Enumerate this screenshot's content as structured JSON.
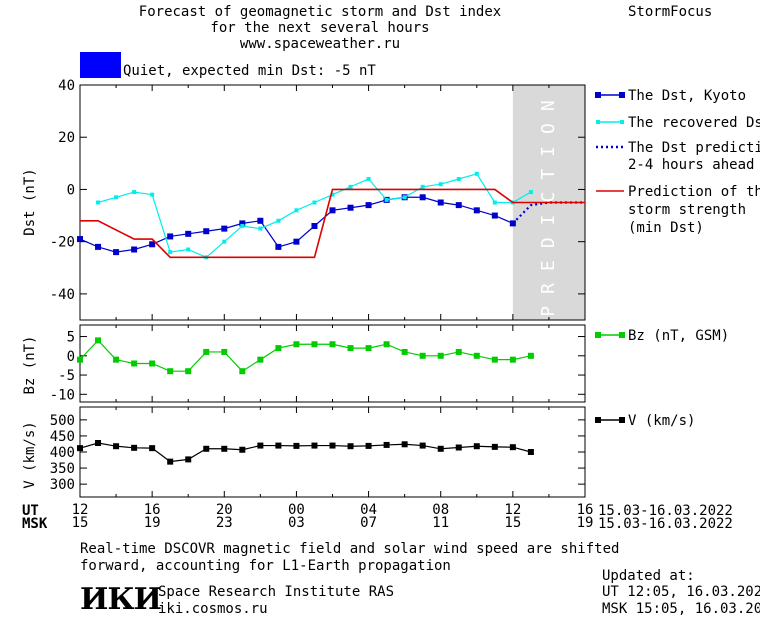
{
  "header": {
    "title_line1": "Forecast of geomagnetic storm and Dst index",
    "title_line2": "for the next several hours",
    "title_line3": "www.spaceweather.ru",
    "brand": "StormFocus"
  },
  "status": {
    "swatch_color": "#0000ff",
    "label": "Quiet, expected min Dst: -5 nT"
  },
  "chart_data": [
    {
      "type": "line",
      "panel": "dst",
      "ylabel": "Dst (nT)",
      "ylim": [
        -50,
        40
      ],
      "yticks": [
        40,
        20,
        0,
        -20,
        -40
      ],
      "x_hours_range": [
        0,
        28
      ],
      "prediction_region": {
        "label": "PREDICTION",
        "x_from_hours": 24,
        "x_to_hours": 28,
        "color": "#d9d9d9"
      },
      "series": [
        {
          "name": "The Dst, Kyoto",
          "color": "#0000cc",
          "style": "line-square",
          "x": [
            0,
            1,
            2,
            3,
            4,
            5,
            6,
            7,
            8,
            9,
            10,
            11,
            12,
            13,
            14,
            15,
            16,
            17,
            18,
            19,
            20,
            21,
            22,
            23,
            24
          ],
          "y": [
            -19,
            -22,
            -24,
            -23,
            -21,
            -18,
            -17,
            -16,
            -15,
            -13,
            -12,
            -22,
            -20,
            -14,
            -8,
            -7,
            -6,
            -4,
            -3,
            -3,
            -5,
            -6,
            -8,
            -10,
            -13
          ]
        },
        {
          "name": "The recovered Dst",
          "color": "#00eeee",
          "style": "line-square-small",
          "x": [
            1,
            2,
            3,
            4,
            5,
            6,
            7,
            8,
            9,
            10,
            11,
            12,
            13,
            14,
            15,
            16,
            17,
            18,
            19,
            20,
            21,
            22,
            23,
            24,
            25
          ],
          "y": [
            -5,
            -3,
            -1,
            -2,
            -24,
            -23,
            -26,
            -20,
            -14,
            -15,
            -12,
            -8,
            -5,
            -2,
            1,
            4,
            -4,
            -3,
            1,
            2,
            4,
            6,
            -5,
            -5,
            -1
          ]
        },
        {
          "name": "The Dst prediction 2-4 hours ahead",
          "color": "#0000cc",
          "style": "dotted",
          "x": [
            24,
            25,
            26,
            28
          ],
          "y": [
            -13,
            -6,
            -5,
            -5
          ]
        },
        {
          "name": "Prediction of the storm strength (min Dst)",
          "color": "#dd0000",
          "style": "step",
          "x": [
            0,
            1,
            3,
            4,
            5,
            13,
            14,
            23,
            24,
            28
          ],
          "y": [
            -12,
            -12,
            -19,
            -19,
            -26,
            -26,
            0,
            0,
            -5,
            -5
          ]
        }
      ]
    },
    {
      "type": "line",
      "panel": "bz",
      "ylabel": "Bz (nT)",
      "ylim": [
        -12,
        8
      ],
      "yticks": [
        5,
        0,
        -5,
        -10
      ],
      "series": [
        {
          "name": "Bz (nT, GSM)",
          "color": "#00cc00",
          "style": "line-square",
          "x": [
            0,
            1,
            2,
            3,
            4,
            5,
            6,
            7,
            8,
            9,
            10,
            11,
            12,
            13,
            14,
            15,
            16,
            17,
            18,
            19,
            20,
            21,
            22,
            23,
            24,
            25
          ],
          "y": [
            -1,
            4,
            -1,
            -2,
            -2,
            -4,
            -4,
            1,
            1,
            -4,
            -1,
            2,
            3,
            3,
            3,
            2,
            2,
            3,
            1,
            0,
            0,
            1,
            0,
            -1,
            -1,
            0
          ]
        }
      ]
    },
    {
      "type": "line",
      "panel": "v",
      "ylabel": "V (km/s)",
      "ylim": [
        260,
        540
      ],
      "yticks": [
        500,
        450,
        400,
        350,
        300
      ],
      "series": [
        {
          "name": "V (km/s)",
          "color": "#000000",
          "style": "line-square",
          "x": [
            0,
            1,
            2,
            3,
            4,
            5,
            6,
            7,
            8,
            9,
            10,
            11,
            12,
            13,
            14,
            15,
            16,
            17,
            18,
            19,
            20,
            21,
            22,
            23,
            24,
            25
          ],
          "y": [
            412,
            428,
            418,
            413,
            412,
            370,
            377,
            410,
            410,
            407,
            420,
            420,
            419,
            420,
            420,
            418,
            419,
            422,
            424,
            420,
            410,
            414,
            418,
            416,
            415,
            400
          ]
        }
      ]
    }
  ],
  "time_axis": {
    "ut_label": "UT",
    "msk_label": "MSK",
    "ut_ticks": [
      "12",
      "16",
      "20",
      "00",
      "04",
      "08",
      "12",
      "16"
    ],
    "msk_ticks": [
      "15",
      "19",
      "23",
      "03",
      "07",
      "11",
      "15",
      "19"
    ],
    "ut_date_range": "15.03-16.03.2022",
    "msk_date_range": "15.03-16.03.2022"
  },
  "legend": {
    "dst_kyoto": "The Dst, Kyoto",
    "dst_recovered": "The recovered Dst",
    "dst_prediction_line1": "The Dst prediction",
    "dst_prediction_line2": "2-4 hours ahead",
    "storm_line1": "Prediction of the",
    "storm_line2": "storm strength",
    "storm_line3": "(min Dst)",
    "bz": "Bz (nT, GSM)",
    "v": "V (km/s)"
  },
  "footer": {
    "note_line1": "Real-time DSCOVR magnetic field and solar wind speed are shifted",
    "note_line2": "forward, accounting for L1-Earth propagation",
    "logo": "ИКИ",
    "institute": "Space Research Institute RAS",
    "site": "iki.cosmos.ru",
    "updated_label": "Updated at:",
    "updated_ut": "UT   12:05, 16.03.2022",
    "updated_msk": "MSK 15:05, 16.03.2022"
  }
}
